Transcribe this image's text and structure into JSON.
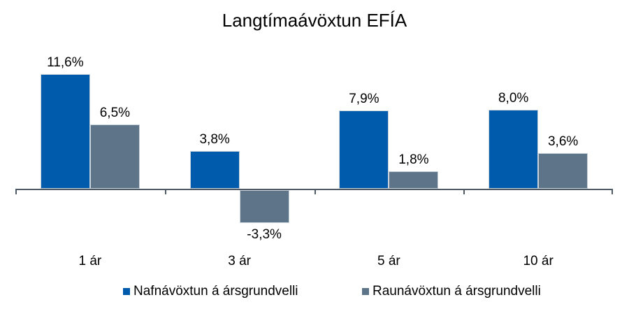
{
  "chart_data": {
    "type": "bar",
    "title": "Langtímaávöxtun EFÍA",
    "categories": [
      "1 ár",
      "3 ár",
      "5 ár",
      "10 ár"
    ],
    "series": [
      {
        "name": "Nafnávöxtun á ársgrundvelli",
        "color": "#005BAD",
        "values": [
          11.6,
          3.8,
          7.9,
          8.0
        ],
        "data_labels": [
          "11,6%",
          "3,8%",
          "7,9%",
          "8,0%"
        ]
      },
      {
        "name": "Raunávöxtun á ársgrundvelli",
        "color": "#5E7488",
        "values": [
          6.5,
          -3.3,
          1.8,
          3.6
        ],
        "data_labels": [
          "6,5%",
          "-3,3%",
          "1,8%",
          "3,6%"
        ]
      }
    ],
    "xlabel": "",
    "ylabel": "",
    "ylim": [
      -5,
      13
    ],
    "grid": false,
    "y_axis_visible": false,
    "x_axis_visible": true,
    "legend_position": "bottom",
    "axis_color": "#4F5A64",
    "label_color": "#000000",
    "background": "#FFFFFF"
  }
}
